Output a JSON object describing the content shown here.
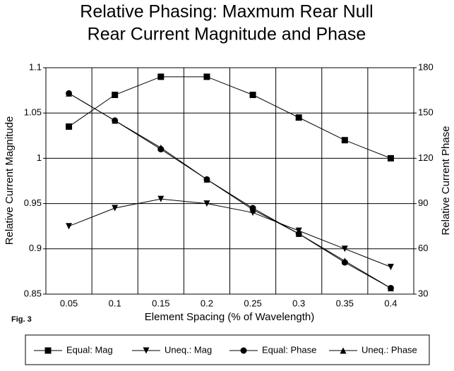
{
  "chart_data": {
    "type": "line",
    "title": [
      "Relative Phasing:  Maxmum Rear Null",
      "Rear Current Magnitude and Phase"
    ],
    "x_label": "Element Spacing (% of Wavelength)",
    "y_label": "Relative Current Magnitude",
    "y2_label": "Relative Current Phase",
    "annotation": "Fig. 3",
    "categories": [
      "0.05",
      "0.1",
      "0.15",
      "0.2",
      "0.25",
      "0.3",
      "0.35",
      "0.4"
    ],
    "ylim": [
      0.85,
      1.1
    ],
    "yticks": [
      0.85,
      0.9,
      0.95,
      1,
      1.05,
      1.1
    ],
    "y2lim": [
      30,
      180
    ],
    "y2ticks": [
      30,
      60,
      90,
      120,
      150,
      180
    ],
    "grid": true,
    "legend": "bottom",
    "series": [
      {
        "name": "Equal: Mag",
        "color": "#000000",
        "marker": "square",
        "values": [
          1.035,
          1.07,
          1.09,
          1.09,
          1.07,
          1.045,
          1.02,
          1.0
        ]
      },
      {
        "name": "Uneq.: Mag",
        "color": "#000000",
        "marker": "triangle-down",
        "values": [
          0.925,
          0.945,
          0.955,
          0.95,
          0.94,
          0.92,
          0.9,
          0.88
        ]
      },
      {
        "name": "Equal: Phase",
        "color": "#000000",
        "marker": "circle",
        "axis": "y2",
        "values": [
          163,
          145,
          126,
          106,
          87,
          70,
          51,
          34
        ]
      },
      {
        "name": "Uneq.: Phase",
        "color": "#000000",
        "marker": "triangle-up",
        "axis": "y2",
        "values": [
          163,
          145,
          127,
          106,
          86,
          70,
          52,
          34
        ]
      }
    ]
  }
}
